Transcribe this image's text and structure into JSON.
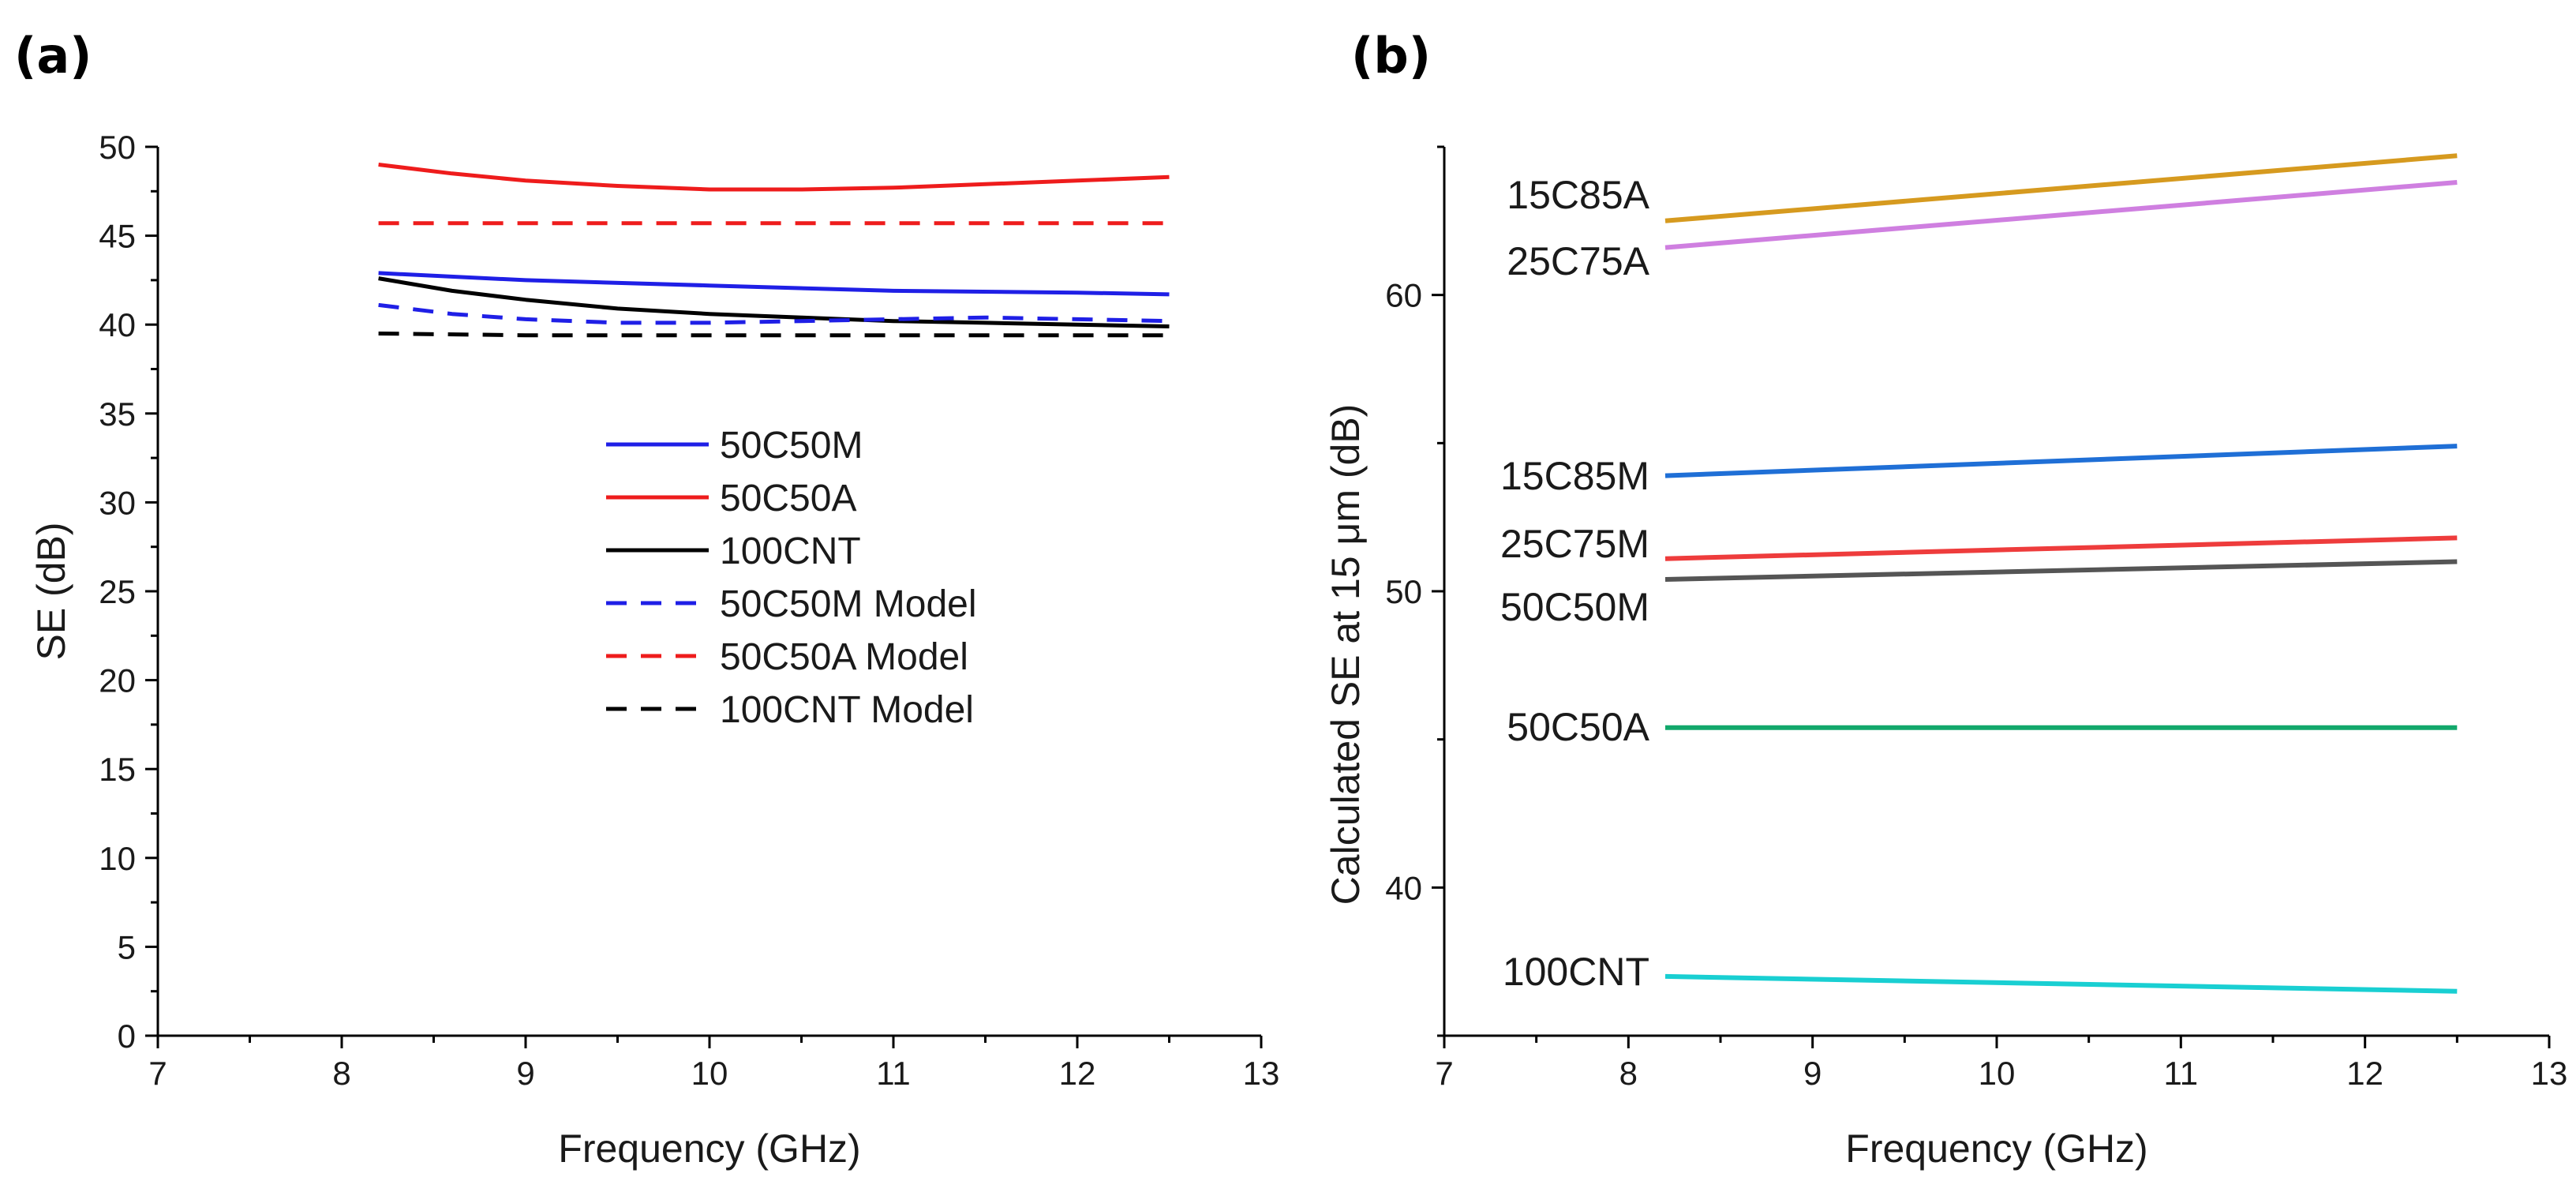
{
  "panels": {
    "a": {
      "label": "(a)"
    },
    "b": {
      "label": "(b)"
    }
  },
  "chart_data": [
    {
      "type": "line",
      "panel": "(a)",
      "title": "",
      "xlabel": "Frequency (GHz)",
      "ylabel": "SE (dB)",
      "xlim": [
        7,
        13
      ],
      "ylim": [
        0,
        50
      ],
      "xticks": [
        "7",
        "8",
        "9",
        "10",
        "11",
        "12",
        "13"
      ],
      "yticks": [
        "0",
        "5",
        "10",
        "15",
        "20",
        "25",
        "30",
        "35",
        "40",
        "45",
        "50"
      ],
      "legend_position": "center",
      "series": [
        {
          "name": "50C50M",
          "color": "#1f1fe6",
          "dash": "solid",
          "x": [
            8.2,
            9,
            10,
            11,
            12,
            12.5
          ],
          "y": [
            42.9,
            42.5,
            42.2,
            41.9,
            41.8,
            41.7
          ]
        },
        {
          "name": "50C50A",
          "color": "#ee1c1c",
          "dash": "solid",
          "x": [
            8.2,
            8.6,
            9,
            9.5,
            10,
            10.5,
            11,
            11.5,
            12,
            12.5
          ],
          "y": [
            49.0,
            48.5,
            48.1,
            47.8,
            47.6,
            47.6,
            47.7,
            47.9,
            48.1,
            48.3
          ]
        },
        {
          "name": "100CNT",
          "color": "#000000",
          "dash": "solid",
          "x": [
            8.2,
            8.6,
            9,
            9.5,
            10,
            10.5,
            11,
            11.5,
            12,
            12.5
          ],
          "y": [
            42.6,
            41.9,
            41.4,
            40.9,
            40.6,
            40.4,
            40.2,
            40.1,
            40.0,
            39.9
          ]
        },
        {
          "name": "50C50M Model",
          "color": "#1f1fe6",
          "dash": "dashed",
          "x": [
            8.2,
            8.6,
            9,
            9.5,
            10,
            10.5,
            11,
            11.5,
            12,
            12.5
          ],
          "y": [
            41.1,
            40.6,
            40.3,
            40.1,
            40.1,
            40.2,
            40.3,
            40.4,
            40.3,
            40.2
          ]
        },
        {
          "name": "50C50A  Model",
          "color": "#ee1c1c",
          "dash": "dashed",
          "x": [
            8.2,
            9,
            10,
            11,
            12,
            12.5
          ],
          "y": [
            45.7,
            45.7,
            45.7,
            45.7,
            45.7,
            45.7
          ]
        },
        {
          "name": "100CNT Model",
          "color": "#000000",
          "dash": "dashed",
          "x": [
            8.2,
            9,
            10,
            11,
            12,
            12.5
          ],
          "y": [
            39.5,
            39.4,
            39.4,
            39.4,
            39.4,
            39.4
          ]
        }
      ]
    },
    {
      "type": "line",
      "panel": "(b)",
      "title": "",
      "xlabel": "Frequency (GHz)",
      "ylabel": "Calculated SE at 15 μm (dB)",
      "xlim": [
        7,
        13
      ],
      "ylim": [
        35,
        65
      ],
      "xticks": [
        "7",
        "8",
        "9",
        "10",
        "11",
        "12",
        "13"
      ],
      "yticks": [
        "40",
        "50",
        "60"
      ],
      "series": [
        {
          "name": "15C85A",
          "color": "#d69a1f",
          "x": [
            8.2,
            12.5
          ],
          "y": [
            62.5,
            64.7
          ]
        },
        {
          "name": "25C75A",
          "color": "#cf7fe0",
          "x": [
            8.2,
            12.5
          ],
          "y": [
            61.6,
            63.8
          ]
        },
        {
          "name": "15C85M",
          "color": "#1f6fd6",
          "x": [
            8.2,
            12.5
          ],
          "y": [
            53.9,
            54.9
          ]
        },
        {
          "name": "25C75M",
          "color": "#ee3c3c",
          "x": [
            8.2,
            12.5
          ],
          "y": [
            51.1,
            51.8
          ]
        },
        {
          "name": "50C50M",
          "color": "#555555",
          "x": [
            8.2,
            12.5
          ],
          "y": [
            50.4,
            51.0
          ]
        },
        {
          "name": "50C50A",
          "color": "#12a86b",
          "x": [
            8.2,
            12.5
          ],
          "y": [
            45.4,
            45.4
          ]
        },
        {
          "name": "100CNT",
          "color": "#19cfd2",
          "x": [
            8.2,
            12.5
          ],
          "y": [
            37.0,
            36.5
          ]
        }
      ]
    }
  ]
}
